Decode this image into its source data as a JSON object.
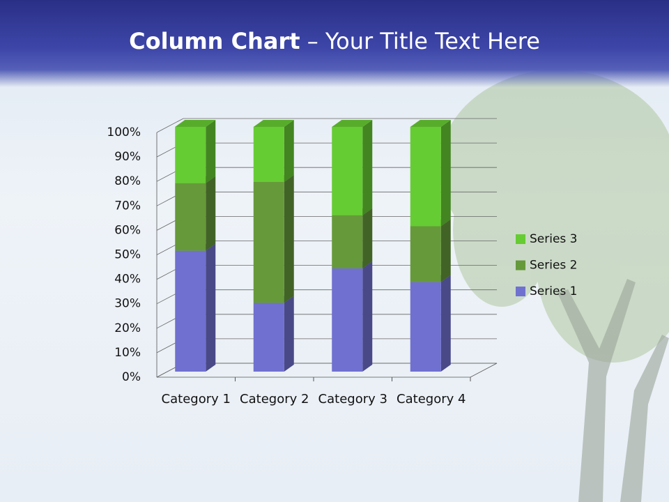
{
  "chart_data": {
    "type": "stacked_bar_100",
    "title": {
      "bold": "Column Chart",
      "text": "– Your Title Text Here"
    },
    "categories": [
      "Category 1",
      "Category 2",
      "Category 3",
      "Category 4"
    ],
    "series": [
      {
        "name": "Series 1",
        "color": "#7070d0",
        "values": [
          49.4,
          28.1,
          42.2,
          36.6
        ]
      },
      {
        "name": "Series 2",
        "color": "#66993a",
        "values": [
          27.6,
          49.4,
          21.7,
          22.8
        ]
      },
      {
        "name": "Series 3",
        "color": "#66cc33",
        "values": [
          23.0,
          22.5,
          36.1,
          40.6
        ]
      }
    ],
    "ylim": [
      0,
      100
    ],
    "yticks": [
      {
        "value": 0,
        "label": "0%"
      },
      {
        "value": 10,
        "label": "10%"
      },
      {
        "value": 20,
        "label": "20%"
      },
      {
        "value": 30,
        "label": "30%"
      },
      {
        "value": 40,
        "label": "40%"
      },
      {
        "value": 50,
        "label": "50%"
      },
      {
        "value": 60,
        "label": "60%"
      },
      {
        "value": 70,
        "label": "70%"
      },
      {
        "value": 80,
        "label": "80%"
      },
      {
        "value": 90,
        "label": "90%"
      },
      {
        "value": 100,
        "label": "100%"
      }
    ],
    "grid": true,
    "legend": "right"
  }
}
